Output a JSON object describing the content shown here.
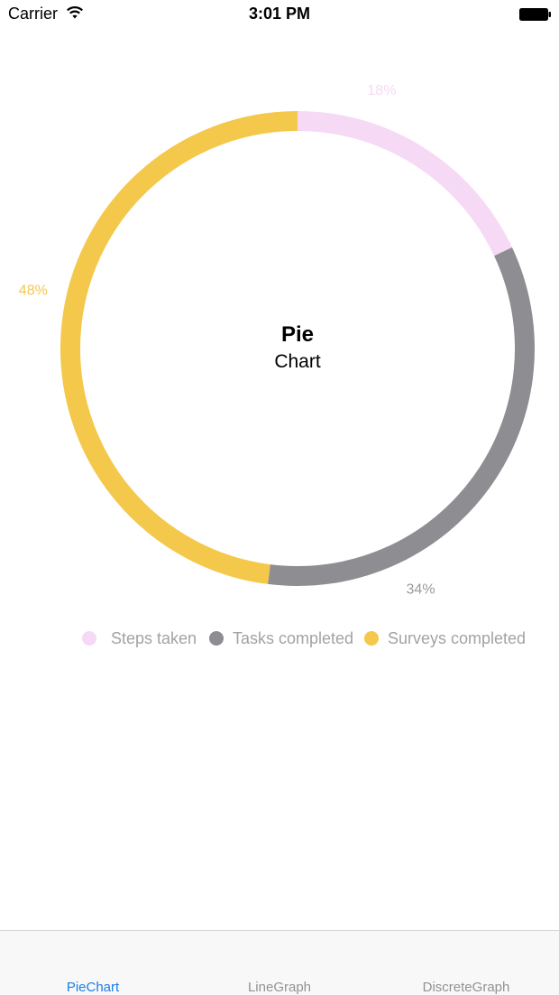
{
  "status_bar": {
    "carrier": "Carrier",
    "time": "3:01 PM",
    "wifi_icon": "wifi-icon",
    "battery_icon": "battery-icon"
  },
  "chart_center": {
    "title": "Pie",
    "subtitle": "Chart"
  },
  "chart_data": {
    "type": "pie",
    "style": "donut",
    "categories": [
      "Steps taken",
      "Tasks completed",
      "Surveys completed"
    ],
    "values": [
      18,
      34,
      48
    ],
    "labels": [
      "18%",
      "34%",
      "48%"
    ],
    "colors": [
      "#f6d9f5",
      "#8e8d91",
      "#f4c84a"
    ],
    "legend_position": "bottom",
    "title": "Pie",
    "subtitle": "Chart"
  },
  "tabs": [
    {
      "label": "PieChart",
      "active": true
    },
    {
      "label": "LineGraph",
      "active": false
    },
    {
      "label": "DiscreteGraph",
      "active": false
    }
  ],
  "colors": {
    "active_tab": "#1a7ee6",
    "inactive_tab": "#929292",
    "legend_text": "#a3a3a3"
  }
}
